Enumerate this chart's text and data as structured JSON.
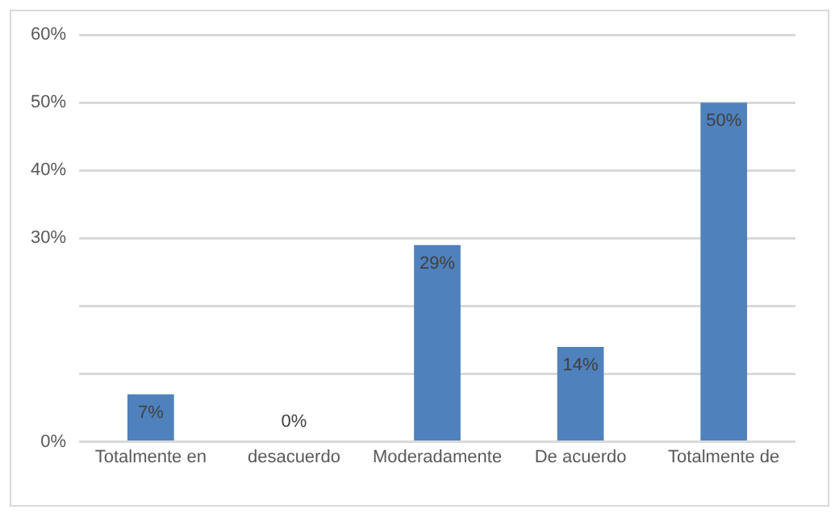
{
  "chart_data": {
    "type": "bar",
    "categories": [
      "Totalmente en",
      "desacuerdo",
      "Moderadamente",
      "De acuerdo",
      "Totalmente de"
    ],
    "values": [
      7,
      0,
      29,
      14,
      50
    ],
    "color": "#4f81bd",
    "value_labels": [
      "7%",
      "0%",
      "29%",
      "14%",
      "50%"
    ],
    "ylim": [
      0,
      60
    ],
    "yticks": [
      {
        "value": 0,
        "label": "0%"
      },
      {
        "value": 10,
        "label": null
      },
      {
        "value": 20,
        "label": null
      },
      {
        "value": 30,
        "label": "30%"
      },
      {
        "value": 40,
        "label": "40%"
      },
      {
        "value": 50,
        "label": "50%"
      },
      {
        "value": 60,
        "label": "60%"
      }
    ],
    "grid": "y",
    "legend": false
  }
}
